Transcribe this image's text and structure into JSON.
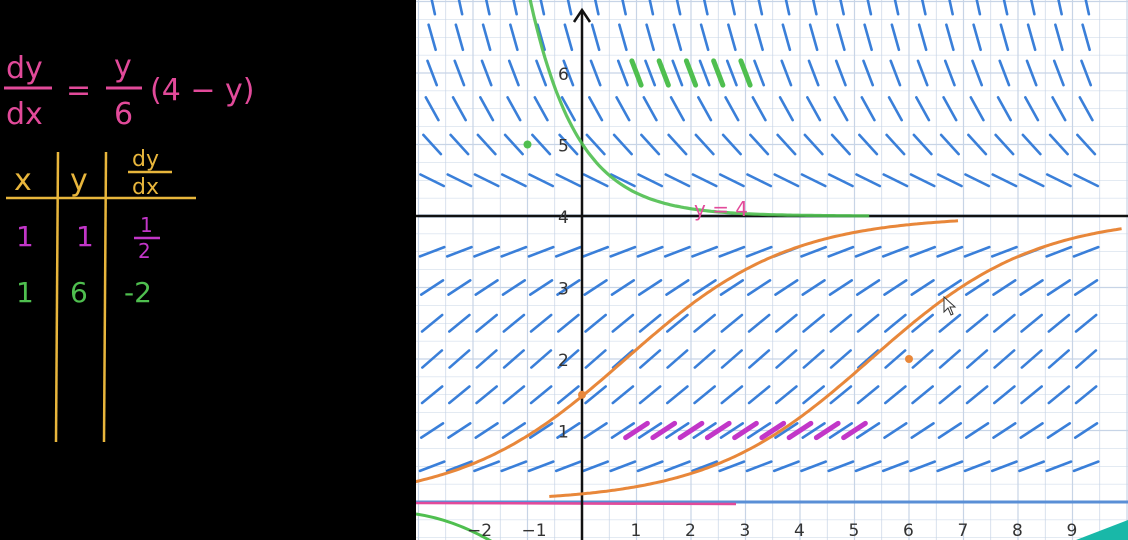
{
  "equation": {
    "lhs_numerator": "dy",
    "lhs_denominator": "dx",
    "equals": "=",
    "rhs_numerator": "y",
    "rhs_denominator": "6",
    "rhs_factor": "(4 − y)"
  },
  "table": {
    "headers": [
      "x",
      "y",
      "dy/dx"
    ],
    "header_dy": "dy",
    "header_dx": "dx",
    "rows": [
      {
        "x": "1",
        "y": "1",
        "dydx": "1/2",
        "dydx_num": "1",
        "dydx_den": "2",
        "color": "#c236c8"
      },
      {
        "x": "1",
        "y": "6",
        "dydx": "-2",
        "color": "#4fbf4f"
      }
    ]
  },
  "graph": {
    "equilibrium_label": "y = 4",
    "x_ticks": [
      "−2",
      "−1",
      "1",
      "2",
      "3",
      "4",
      "5",
      "6",
      "7",
      "8",
      "9"
    ],
    "y_ticks": [
      "1",
      "2",
      "3",
      "4",
      "5",
      "6"
    ],
    "xlim": [
      -3,
      9.9
    ],
    "ylim": [
      -0.6,
      7.1
    ]
  },
  "colors": {
    "pink": "#e24a9a",
    "yellow": "#e8b63c",
    "magenta": "#c236c8",
    "green": "#4fbf4f",
    "field": "#3a7fd9",
    "orange": "#e8873a",
    "grid": "#c7d4e6",
    "paper": "#ffffff"
  }
}
